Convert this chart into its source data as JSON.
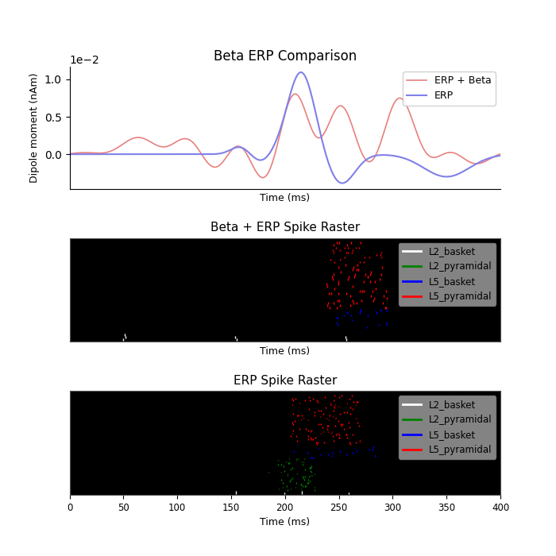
{
  "title_erp": "Beta ERP Comparison",
  "title_beta_raster": "Beta + ERP Spike Raster",
  "title_erp_raster": "ERP Spike Raster",
  "xlabel": "Time (ms)",
  "ylabel_erp": "Dipole moment (nAm)",
  "erp_plus_beta_color": "#e88080",
  "erp_color": "#8080e8",
  "erp_plus_beta_label": "ERP + Beta",
  "erp_label": "ERP",
  "legend_labels": [
    "L2_basket",
    "L2_pyramidal",
    "L5_basket",
    "L5_pyramidal"
  ],
  "legend_colors": [
    "white",
    "green",
    "blue",
    "red"
  ],
  "xmin": 0,
  "xmax": 400,
  "figsize": [
    7.0,
    7.0
  ],
  "dpi": 100
}
